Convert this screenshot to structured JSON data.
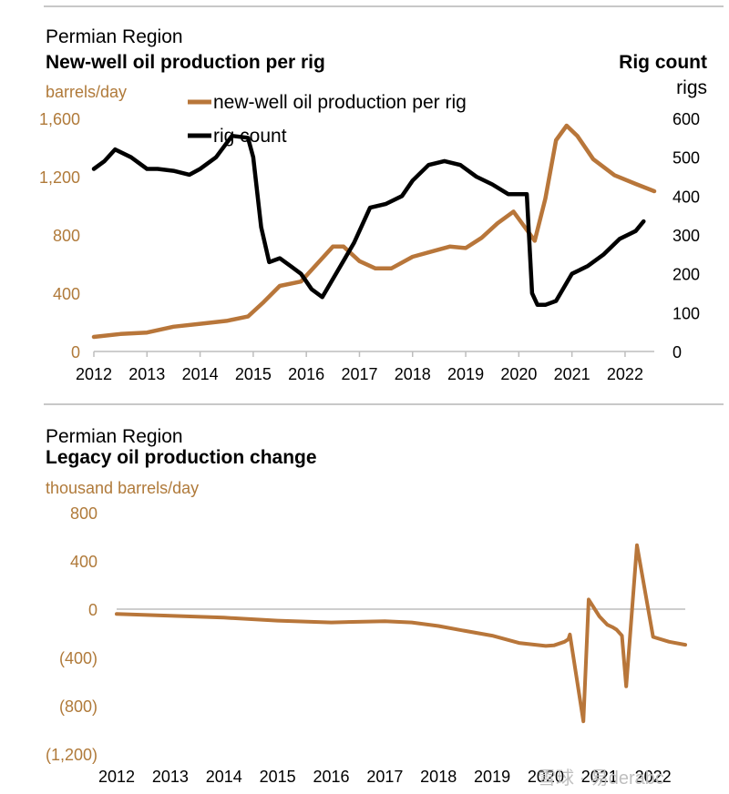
{
  "chart_data": [
    {
      "type": "line",
      "supertitle": "Permian Region",
      "title": "New-well oil production per rig",
      "ylabel": "barrels/day",
      "y2title": "Rig count",
      "y2label": "rigs",
      "ylim": [
        0,
        1600
      ],
      "y2lim": [
        0,
        600
      ],
      "yticks": [
        "0",
        "400",
        "800",
        "1,200",
        "1,600"
      ],
      "y2ticks": [
        "0",
        "100",
        "200",
        "300",
        "400",
        "500",
        "600"
      ],
      "xticks": [
        "2012",
        "2013",
        "2014",
        "2015",
        "2016",
        "2017",
        "2018",
        "2019",
        "2020",
        "2021",
        "2022"
      ],
      "xlim": [
        2012.0,
        2022.55
      ],
      "legend": [
        "new-well oil production per rig",
        "rig count"
      ],
      "legend_position": "top-center",
      "colors": {
        "production": "#b8763a",
        "rigs": "#000000"
      },
      "series": [
        {
          "name": "new-well oil production per rig",
          "axis": "left",
          "x": [
            2012.0,
            2012.5,
            2013.0,
            2013.5,
            2014.0,
            2014.5,
            2014.9,
            2015.2,
            2015.5,
            2015.9,
            2016.2,
            2016.5,
            2016.7,
            2017.0,
            2017.3,
            2017.6,
            2018.0,
            2018.4,
            2018.7,
            2019.0,
            2019.3,
            2019.6,
            2019.9,
            2020.1,
            2020.3,
            2020.5,
            2020.7,
            2020.9,
            2021.1,
            2021.4,
            2021.8,
            2022.2,
            2022.55
          ],
          "y": [
            100,
            120,
            130,
            170,
            190,
            210,
            240,
            340,
            450,
            480,
            600,
            720,
            720,
            620,
            570,
            570,
            650,
            690,
            720,
            710,
            780,
            880,
            960,
            860,
            760,
            1050,
            1450,
            1550,
            1480,
            1320,
            1210,
            1150,
            1100
          ]
        },
        {
          "name": "rig count",
          "axis": "right",
          "x": [
            2012.0,
            2012.2,
            2012.4,
            2012.7,
            2013.0,
            2013.2,
            2013.5,
            2013.8,
            2014.0,
            2014.3,
            2014.6,
            2014.9,
            2015.0,
            2015.15,
            2015.3,
            2015.5,
            2015.7,
            2015.9,
            2016.1,
            2016.3,
            2016.6,
            2016.9,
            2017.2,
            2017.5,
            2017.8,
            2018.0,
            2018.3,
            2018.6,
            2018.9,
            2019.2,
            2019.5,
            2019.8,
            2020.0,
            2020.15,
            2020.25,
            2020.35,
            2020.5,
            2020.7,
            2021.0,
            2021.3,
            2021.6,
            2021.9,
            2022.2,
            2022.35
          ],
          "y": [
            470,
            490,
            520,
            500,
            470,
            470,
            465,
            455,
            470,
            500,
            555,
            550,
            500,
            320,
            230,
            240,
            220,
            200,
            160,
            140,
            210,
            280,
            370,
            380,
            400,
            440,
            480,
            490,
            480,
            450,
            430,
            405,
            405,
            405,
            150,
            120,
            120,
            130,
            200,
            220,
            250,
            290,
            310,
            335
          ]
        }
      ]
    },
    {
      "type": "line",
      "supertitle": "Permian Region",
      "title": "Legacy oil production change",
      "ylabel": "thousand barrels/day",
      "ylim": [
        -1200,
        800
      ],
      "yticks": [
        "(1,200)",
        "(800)",
        "(400)",
        "0",
        "400",
        "800"
      ],
      "xticks": [
        "2012",
        "2013",
        "2014",
        "2015",
        "2016",
        "2017",
        "2018",
        "2019",
        "2020",
        "2021",
        "2022"
      ],
      "xlim": [
        2012.0,
        2022.6
      ],
      "colors": {
        "line": "#b8763a"
      },
      "series": [
        {
          "name": "",
          "x": [
            2012.0,
            2013.0,
            2014.0,
            2015.0,
            2016.0,
            2016.5,
            2017.0,
            2017.5,
            2018.0,
            2018.5,
            2019.0,
            2019.5,
            2020.0,
            2020.15,
            2020.35,
            2020.42,
            2020.45,
            2020.7,
            2020.8,
            2021.0,
            2021.15,
            2021.25,
            2021.32,
            2021.42,
            2021.5,
            2021.7,
            2022.0,
            2022.3,
            2022.6
          ],
          "y": [
            -40,
            -55,
            -70,
            -95,
            -110,
            -105,
            -100,
            -110,
            -140,
            -180,
            -220,
            -280,
            -305,
            -300,
            -270,
            -250,
            -210,
            -930,
            80,
            -60,
            -130,
            -150,
            -170,
            -220,
            -640,
            530,
            -230,
            -270,
            -295
          ]
        }
      ]
    }
  ],
  "watermark": "雪球 · 易derabc"
}
